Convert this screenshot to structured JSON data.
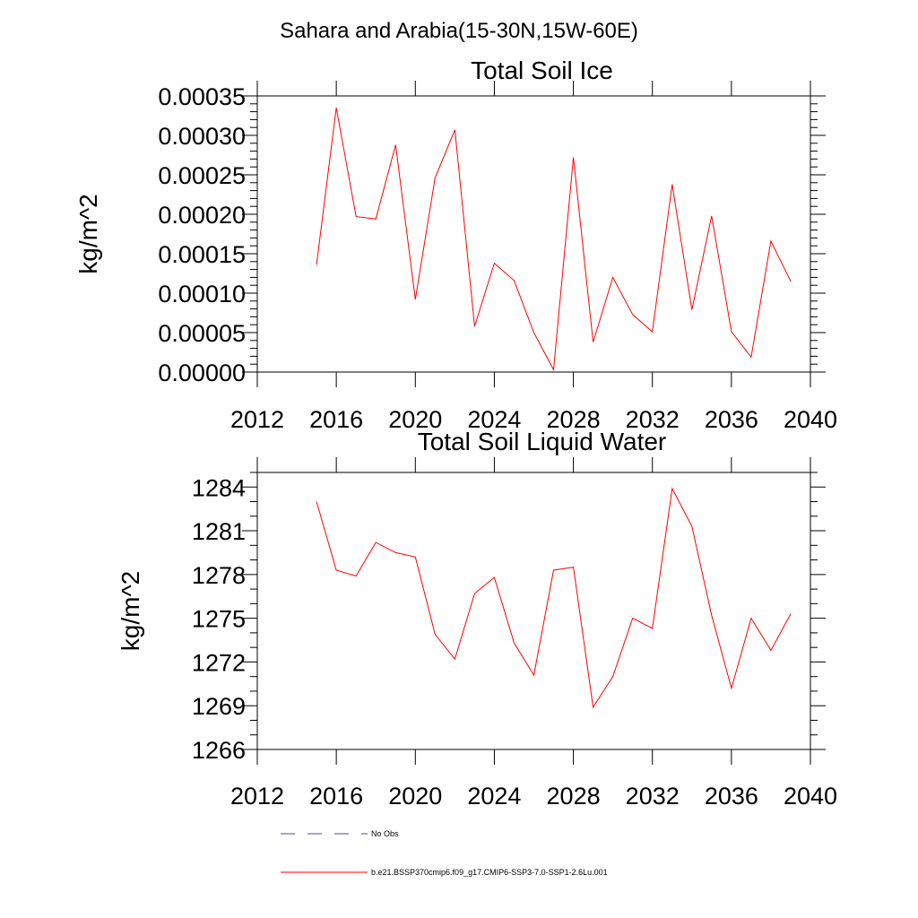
{
  "figure": {
    "title": "Sahara and Arabia(15-30N,15W-60E)",
    "series_color": "#ff0000",
    "legend": {
      "obs_label": "No Obs",
      "obs_color": "#4b4b8f",
      "model_label": "b.e21.BSSP370cmip6.f09_g17.CMIP6-SSP3-7.0-SSP1-2.6Lu.001"
    }
  },
  "chart_data": [
    {
      "type": "line",
      "title": "Total Soil Ice",
      "xlabel": "",
      "ylabel": "kg/m^2",
      "xlim": [
        2012,
        2040
      ],
      "ylim": [
        0,
        0.00035
      ],
      "x_ticks": [
        "2012",
        "2016",
        "2020",
        "2024",
        "2028",
        "2032",
        "2036",
        "2040"
      ],
      "y_ticks": [
        "0.00000",
        "0.00005",
        "0.00010",
        "0.00015",
        "0.00020",
        "0.00025",
        "0.00030",
        "0.00035"
      ],
      "x": [
        2015,
        2016,
        2017,
        2018,
        2019,
        2020,
        2021,
        2022,
        2023,
        2024,
        2025,
        2026,
        2027,
        2028,
        2029,
        2030,
        2031,
        2032,
        2033,
        2034,
        2035,
        2036,
        2037,
        2038,
        2039
      ],
      "series": [
        {
          "values": [
            0.000136,
            0.000335,
            0.000197,
            0.000194,
            0.000288,
            9.2e-05,
            0.000246,
            0.000307,
            5.8e-05,
            0.000138,
            0.000116,
            5e-05,
            3e-06,
            0.000272,
            3.8e-05,
            0.00012,
            7.3e-05,
            5.1e-05,
            0.000238,
            7.9e-05,
            0.000198,
            5.1e-05,
            1.9e-05,
            0.000166,
            0.000115
          ]
        }
      ]
    },
    {
      "type": "line",
      "title": "Total Soil Liquid Water",
      "xlabel": "",
      "ylabel": "kg/m^2",
      "xlim": [
        2012,
        2040
      ],
      "ylim": [
        1266,
        1285
      ],
      "x_ticks": [
        "2012",
        "2016",
        "2020",
        "2024",
        "2028",
        "2032",
        "2036",
        "2040"
      ],
      "y_ticks": [
        "1266",
        "1269",
        "1272",
        "1275",
        "1278",
        "1281",
        "1284"
      ],
      "x": [
        2015,
        2016,
        2017,
        2018,
        2019,
        2020,
        2021,
        2022,
        2023,
        2024,
        2025,
        2026,
        2027,
        2028,
        2029,
        2030,
        2031,
        2032,
        2033,
        2034,
        2035,
        2036,
        2037,
        2038,
        2039
      ],
      "series": [
        {
          "values": [
            1283.0,
            1278.3,
            1277.9,
            1280.2,
            1279.5,
            1279.2,
            1273.9,
            1272.2,
            1276.7,
            1277.8,
            1273.3,
            1271.1,
            1278.3,
            1278.5,
            1268.9,
            1271.0,
            1275.0,
            1274.3,
            1283.9,
            1281.3,
            1275.2,
            1270.2,
            1275.0,
            1272.8,
            1275.3
          ]
        }
      ]
    }
  ]
}
